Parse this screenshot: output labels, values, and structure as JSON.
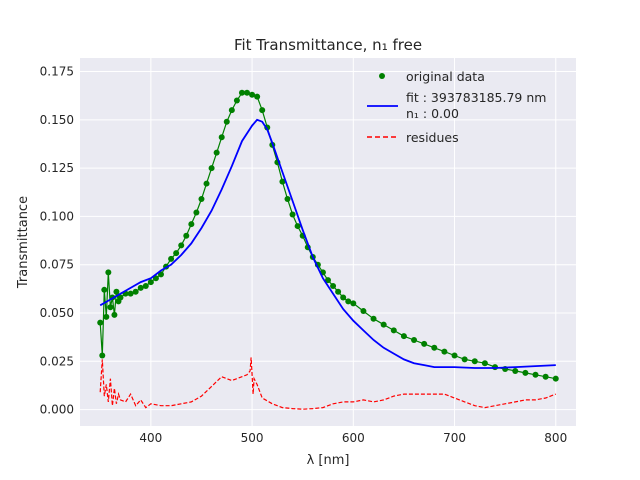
{
  "chart_data": {
    "type": "line",
    "title": "Fit Transmittance, n₁ free",
    "xlabel": "λ [nm]",
    "ylabel": "Transmittance",
    "xlim": [
      330,
      820
    ],
    "ylim": [
      -0.0085,
      0.182
    ],
    "xticks": [
      400,
      500,
      600,
      700,
      800
    ],
    "yticks": [
      0.0,
      0.025,
      0.05,
      0.075,
      0.1,
      0.125,
      0.15,
      0.175
    ],
    "xtick_labels": [
      "400",
      "500",
      "600",
      "700",
      "800"
    ],
    "ytick_labels": [
      "0.000",
      "0.025",
      "0.050",
      "0.075",
      "0.100",
      "0.125",
      "0.150",
      "0.175"
    ],
    "grid": true,
    "legend_position": "top-right",
    "legend": [
      {
        "label": "original data",
        "style": "marker",
        "color": "#008000"
      },
      {
        "label": "fit : 393783185.79 nm",
        "label2": "n₁ : 0.00",
        "style": "line",
        "color": "#0000ff"
      },
      {
        "label": "residues",
        "style": "dashed",
        "color": "#ff0000"
      }
    ],
    "series": [
      {
        "name": "original data",
        "color": "#008000",
        "style": "marker-line",
        "x": [
          350,
          352,
          354,
          356,
          358,
          360,
          362,
          364,
          366,
          368,
          370,
          375,
          380,
          385,
          390,
          395,
          400,
          405,
          410,
          415,
          420,
          425,
          430,
          435,
          440,
          445,
          450,
          455,
          460,
          465,
          470,
          475,
          480,
          485,
          490,
          495,
          500,
          505,
          510,
          515,
          520,
          525,
          530,
          535,
          540,
          545,
          550,
          555,
          560,
          565,
          570,
          575,
          580,
          585,
          590,
          595,
          600,
          610,
          620,
          630,
          640,
          650,
          660,
          670,
          680,
          690,
          700,
          710,
          720,
          730,
          740,
          750,
          760,
          770,
          780,
          790,
          800
        ],
        "y": [
          0.045,
          0.028,
          0.062,
          0.048,
          0.071,
          0.053,
          0.058,
          0.049,
          0.061,
          0.056,
          0.058,
          0.06,
          0.06,
          0.061,
          0.063,
          0.064,
          0.066,
          0.068,
          0.07,
          0.074,
          0.078,
          0.081,
          0.085,
          0.09,
          0.096,
          0.102,
          0.109,
          0.117,
          0.125,
          0.133,
          0.141,
          0.149,
          0.155,
          0.16,
          0.164,
          0.164,
          0.163,
          0.162,
          0.155,
          0.146,
          0.137,
          0.128,
          0.118,
          0.109,
          0.101,
          0.095,
          0.09,
          0.084,
          0.079,
          0.075,
          0.071,
          0.067,
          0.064,
          0.061,
          0.058,
          0.056,
          0.055,
          0.051,
          0.047,
          0.044,
          0.041,
          0.038,
          0.036,
          0.034,
          0.032,
          0.03,
          0.028,
          0.026,
          0.025,
          0.024,
          0.022,
          0.021,
          0.02,
          0.019,
          0.018,
          0.017,
          0.016
        ]
      },
      {
        "name": "fit : 393783185.79 nm",
        "color": "#0000ff",
        "style": "line",
        "x": [
          350,
          360,
          370,
          380,
          390,
          400,
          410,
          420,
          430,
          440,
          450,
          460,
          470,
          480,
          490,
          500,
          505,
          510,
          515,
          520,
          530,
          540,
          550,
          560,
          570,
          580,
          590,
          600,
          610,
          620,
          630,
          640,
          650,
          660,
          670,
          680,
          690,
          700,
          720,
          740,
          760,
          780,
          800
        ],
        "y": [
          0.054,
          0.057,
          0.06,
          0.063,
          0.066,
          0.068,
          0.072,
          0.075,
          0.08,
          0.086,
          0.094,
          0.103,
          0.114,
          0.126,
          0.139,
          0.147,
          0.15,
          0.149,
          0.145,
          0.138,
          0.123,
          0.108,
          0.093,
          0.079,
          0.068,
          0.06,
          0.052,
          0.046,
          0.041,
          0.036,
          0.032,
          0.029,
          0.026,
          0.024,
          0.023,
          0.022,
          0.022,
          0.022,
          0.0215,
          0.0215,
          0.022,
          0.0225,
          0.023
        ]
      },
      {
        "name": "residues",
        "color": "#ff0000",
        "style": "dashed",
        "x": [
          350,
          352,
          354,
          356,
          358,
          360,
          362,
          364,
          366,
          368,
          370,
          375,
          380,
          385,
          390,
          395,
          400,
          410,
          420,
          430,
          440,
          450,
          460,
          470,
          480,
          490,
          495,
          498,
          499,
          500,
          501,
          502,
          505,
          510,
          520,
          530,
          540,
          550,
          560,
          570,
          580,
          590,
          600,
          610,
          620,
          630,
          640,
          650,
          660,
          670,
          680,
          690,
          700,
          710,
          720,
          730,
          740,
          750,
          760,
          770,
          780,
          790,
          800
        ],
        "y": [
          0.009,
          0.026,
          0.007,
          0.013,
          0.004,
          0.016,
          0.002,
          0.011,
          0.003,
          0.008,
          0.005,
          0.004,
          0.008,
          0.002,
          0.005,
          0.001,
          0.003,
          0.002,
          0.002,
          0.003,
          0.004,
          0.007,
          0.012,
          0.017,
          0.015,
          0.017,
          0.018,
          0.02,
          0.027,
          0.018,
          0.008,
          0.016,
          0.013,
          0.006,
          0.003,
          0.001,
          0.0005,
          0.0002,
          0.0005,
          0.001,
          0.003,
          0.004,
          0.004,
          0.005,
          0.004,
          0.005,
          0.007,
          0.008,
          0.008,
          0.008,
          0.008,
          0.008,
          0.006,
          0.004,
          0.002,
          0.001,
          0.002,
          0.003,
          0.004,
          0.005,
          0.005,
          0.006,
          0.008
        ]
      }
    ]
  }
}
